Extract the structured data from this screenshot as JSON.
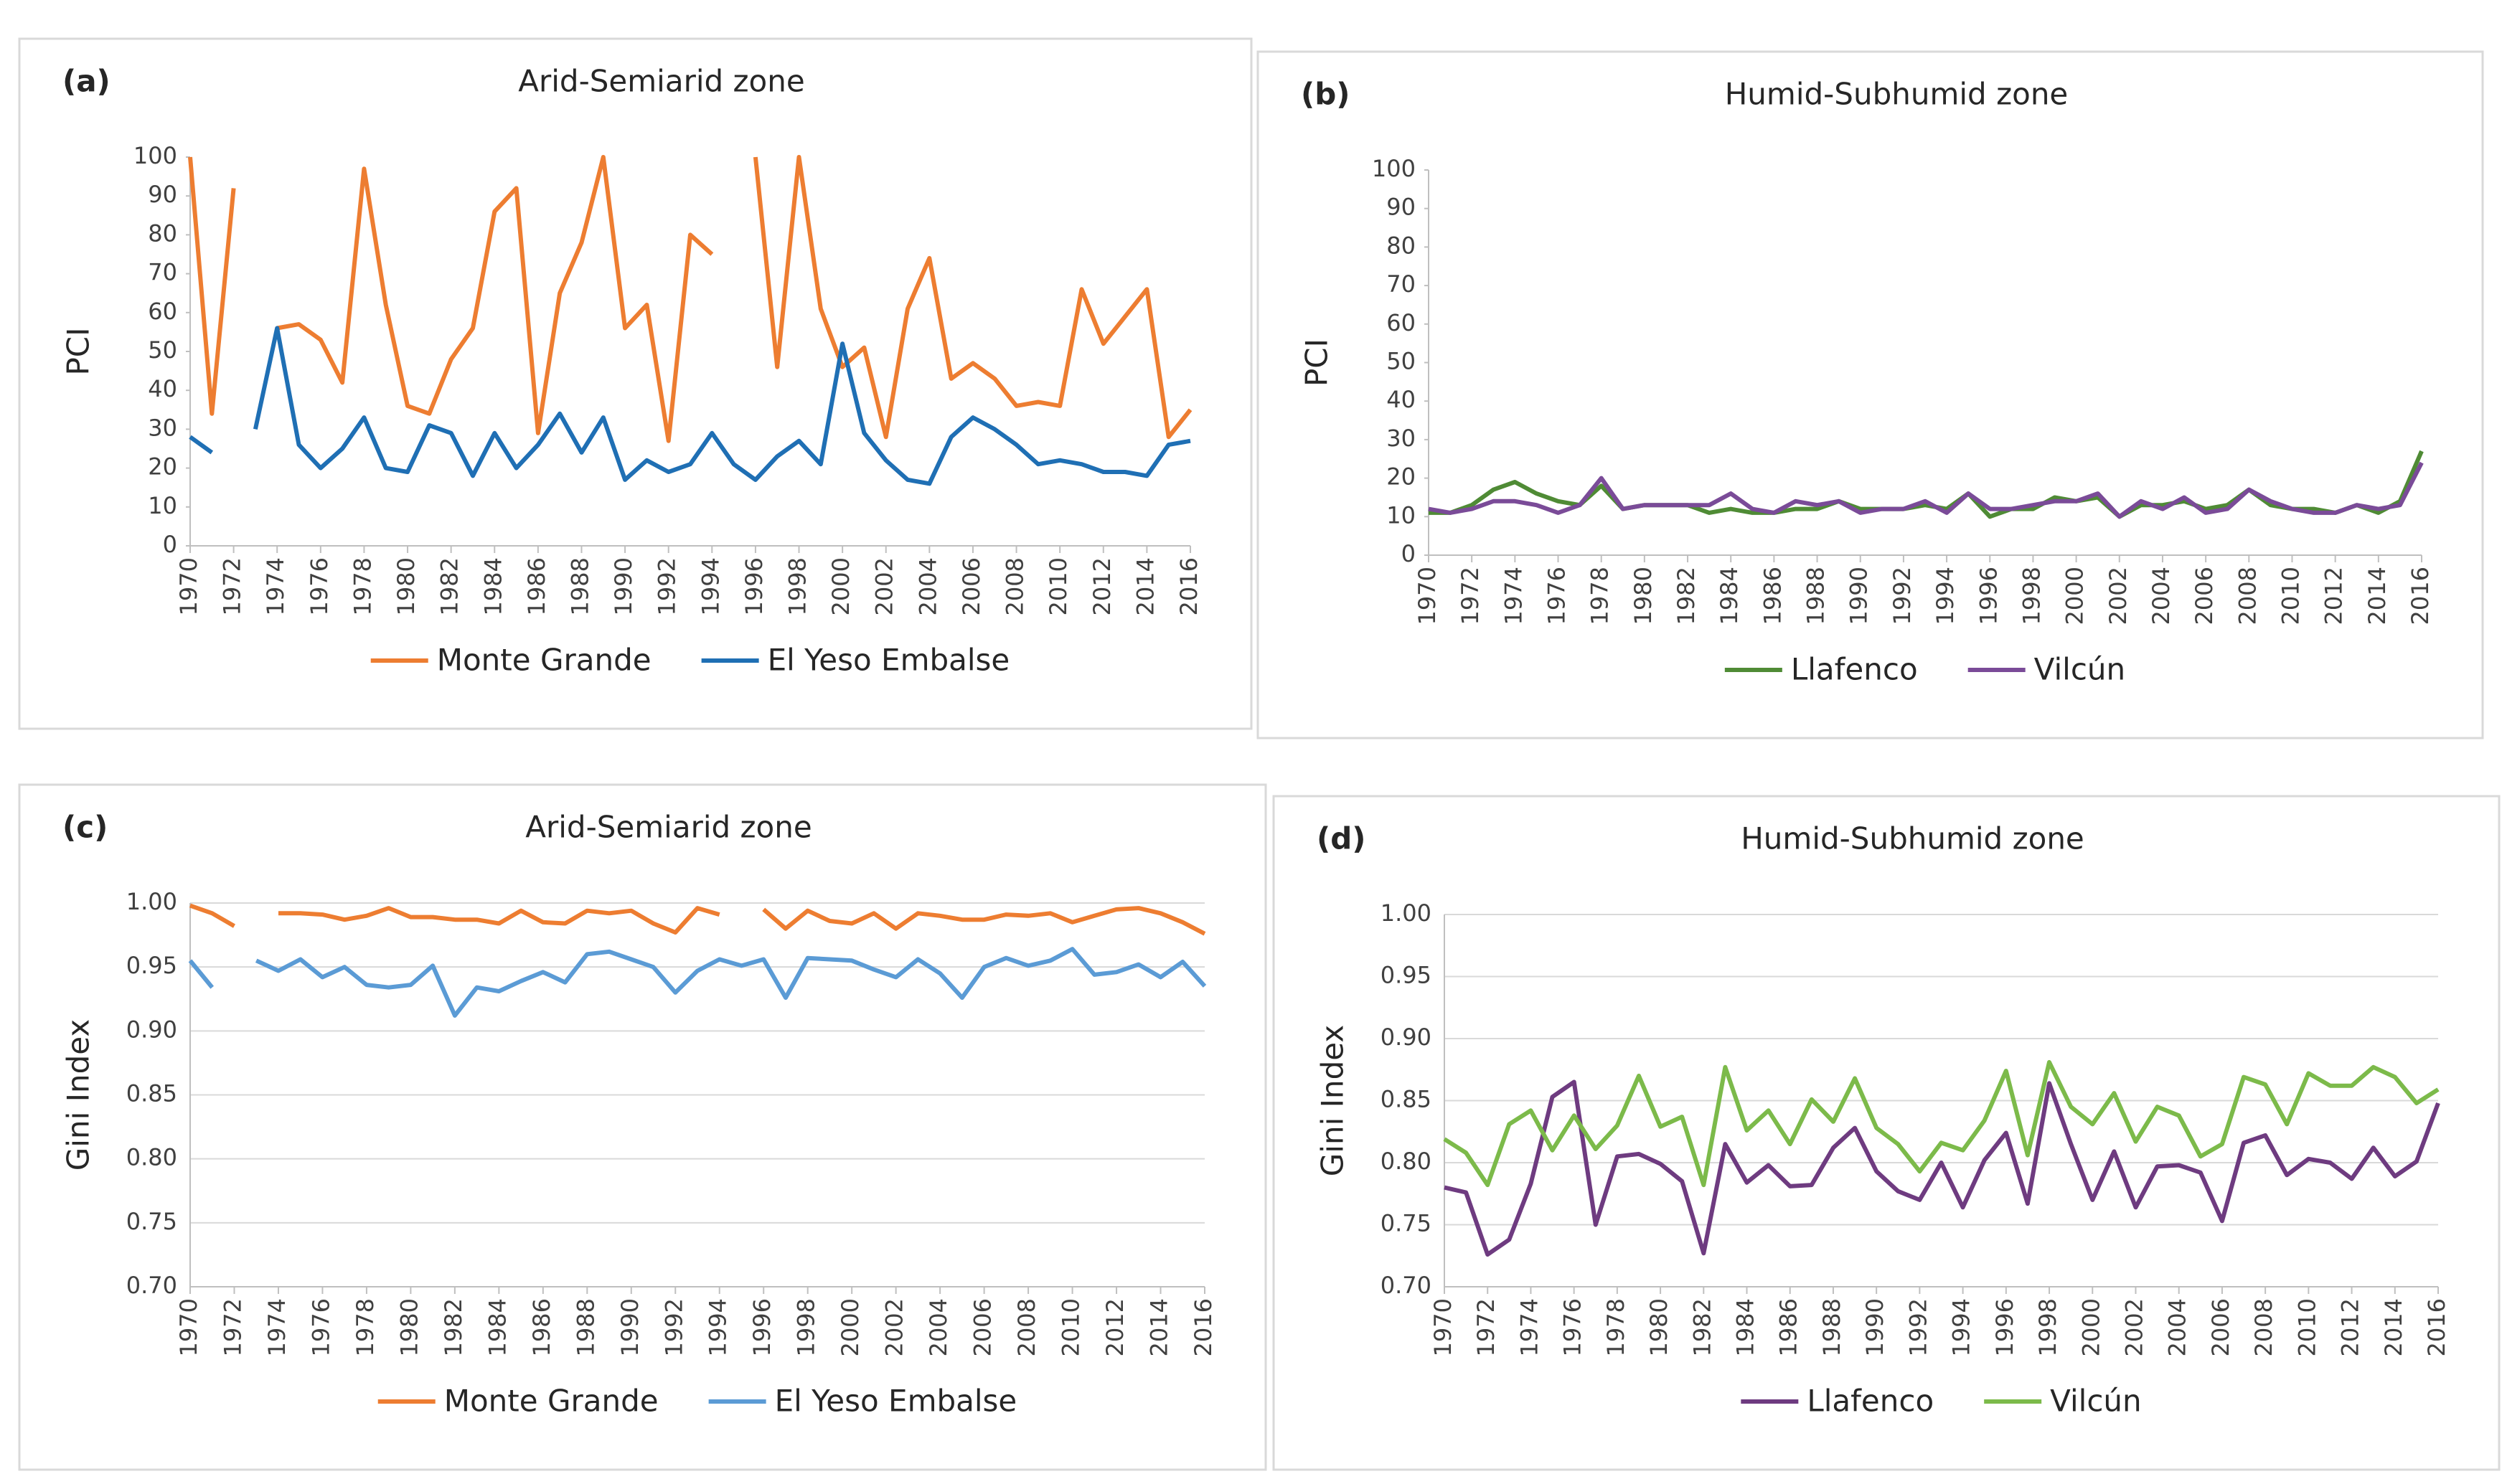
{
  "chart_data": [
    {
      "type": "line",
      "label": "(a)",
      "title": "Arid-Semiarid zone",
      "y_label": "PCI",
      "x": [
        1970,
        1971,
        1972,
        1973,
        1974,
        1975,
        1976,
        1977,
        1978,
        1979,
        1980,
        1981,
        1982,
        1983,
        1984,
        1985,
        1986,
        1987,
        1988,
        1989,
        1990,
        1991,
        1992,
        1993,
        1994,
        1995,
        1996,
        1997,
        1998,
        1999,
        2000,
        2001,
        2002,
        2003,
        2004,
        2005,
        2006,
        2007,
        2008,
        2009,
        2010,
        2011,
        2012,
        2013,
        2014,
        2015,
        2016
      ],
      "xlim": [
        1970,
        2016
      ],
      "xticks": [
        1970,
        1972,
        1974,
        1976,
        1978,
        1980,
        1982,
        1984,
        1986,
        1988,
        1990,
        1992,
        1994,
        1996,
        1998,
        2000,
        2002,
        2004,
        2006,
        2008,
        2010,
        2012,
        2014,
        2016
      ],
      "ylim": [
        0,
        100
      ],
      "yticks": [
        0,
        10,
        20,
        30,
        40,
        50,
        60,
        70,
        80,
        90,
        100
      ],
      "grid": false,
      "series": [
        {
          "name": "Monte Grande",
          "color": "#ed7d31",
          "values": [
            100,
            34,
            92,
            null,
            56,
            57,
            53,
            42,
            97,
            62,
            36,
            34,
            48,
            56,
            86,
            92,
            29,
            65,
            78,
            100,
            56,
            62,
            27,
            80,
            75,
            null,
            100,
            46,
            100,
            61,
            46,
            51,
            28,
            61,
            74,
            43,
            47,
            43,
            36,
            37,
            36,
            66,
            52,
            59,
            66,
            28,
            35
          ]
        },
        {
          "name": "El Yeso Embalse",
          "color": "#1f6fb4",
          "values": [
            28,
            24,
            null,
            30,
            56,
            26,
            20,
            25,
            33,
            20,
            19,
            31,
            29,
            18,
            29,
            20,
            26,
            34,
            24,
            33,
            17,
            22,
            19,
            21,
            29,
            21,
            17,
            23,
            27,
            21,
            52,
            29,
            22,
            17,
            16,
            28,
            33,
            30,
            26,
            21,
            22,
            21,
            19,
            19,
            18,
            26,
            27
          ]
        }
      ]
    },
    {
      "type": "line",
      "label": "(b)",
      "title": "Humid-Subhumid zone",
      "y_label": "PCI",
      "x": [
        1970,
        1971,
        1972,
        1973,
        1974,
        1975,
        1976,
        1977,
        1978,
        1979,
        1980,
        1981,
        1982,
        1983,
        1984,
        1985,
        1986,
        1987,
        1988,
        1989,
        1990,
        1991,
        1992,
        1993,
        1994,
        1995,
        1996,
        1997,
        1998,
        1999,
        2000,
        2001,
        2002,
        2003,
        2004,
        2005,
        2006,
        2007,
        2008,
        2009,
        2010,
        2011,
        2012,
        2013,
        2014,
        2015,
        2016
      ],
      "xlim": [
        1970,
        2016
      ],
      "xticks": [
        1970,
        1972,
        1974,
        1976,
        1978,
        1980,
        1982,
        1984,
        1986,
        1988,
        1990,
        1992,
        1994,
        1996,
        1998,
        2000,
        2002,
        2004,
        2006,
        2008,
        2010,
        2012,
        2014,
        2016
      ],
      "ylim": [
        0,
        100
      ],
      "yticks": [
        0,
        10,
        20,
        30,
        40,
        50,
        60,
        70,
        80,
        90,
        100
      ],
      "grid": false,
      "series": [
        {
          "name": "Llafenco",
          "color": "#4f8b35",
          "values": [
            11,
            11,
            13,
            17,
            19,
            16,
            14,
            13,
            18,
            12,
            13,
            13,
            13,
            11,
            12,
            11,
            11,
            12,
            12,
            14,
            12,
            12,
            12,
            13,
            12,
            16,
            10,
            12,
            12,
            15,
            14,
            15,
            10,
            13,
            13,
            14,
            12,
            13,
            17,
            13,
            12,
            12,
            11,
            13,
            11,
            14,
            27
          ]
        },
        {
          "name": "Vilcún",
          "color": "#7a4b98",
          "values": [
            12,
            11,
            12,
            14,
            14,
            13,
            11,
            13,
            20,
            12,
            13,
            13,
            13,
            13,
            16,
            12,
            11,
            14,
            13,
            14,
            11,
            12,
            12,
            14,
            11,
            16,
            12,
            12,
            13,
            14,
            14,
            16,
            10,
            14,
            12,
            15,
            11,
            12,
            17,
            14,
            12,
            11,
            11,
            13,
            12,
            13,
            24
          ]
        }
      ]
    },
    {
      "type": "line",
      "label": "(c)",
      "title": "Arid-Semiarid zone",
      "y_label": "Gini Index",
      "x": [
        1970,
        1971,
        1972,
        1973,
        1974,
        1975,
        1976,
        1977,
        1978,
        1979,
        1980,
        1981,
        1982,
        1983,
        1984,
        1985,
        1986,
        1987,
        1988,
        1989,
        1990,
        1991,
        1992,
        1993,
        1994,
        1995,
        1996,
        1997,
        1998,
        1999,
        2000,
        2001,
        2002,
        2003,
        2004,
        2005,
        2006,
        2007,
        2008,
        2009,
        2010,
        2011,
        2012,
        2013,
        2014,
        2015,
        2016
      ],
      "xlim": [
        1970,
        2016
      ],
      "xticks": [
        1970,
        1972,
        1974,
        1976,
        1978,
        1980,
        1982,
        1984,
        1986,
        1988,
        1990,
        1992,
        1994,
        1996,
        1998,
        2000,
        2002,
        2004,
        2006,
        2008,
        2010,
        2012,
        2014,
        2016
      ],
      "ylim": [
        0.7,
        1.0
      ],
      "yticks": [
        {
          "value": 0.7,
          "label": "0.70"
        },
        {
          "value": 0.75,
          "label": "0.75"
        },
        {
          "value": 0.8,
          "label": "0.80"
        },
        {
          "value": 0.85,
          "label": "0.85"
        },
        {
          "value": 0.9,
          "label": "0.90"
        },
        {
          "value": 0.95,
          "label": "0.95"
        },
        {
          "value": 1.0,
          "label": "1.00"
        }
      ],
      "grid": true,
      "series": [
        {
          "name": "Monte Grande",
          "color": "#ed7d31",
          "values": [
            0.998,
            0.992,
            0.982,
            null,
            0.992,
            0.992,
            0.991,
            0.987,
            0.99,
            0.996,
            0.989,
            0.989,
            0.987,
            0.987,
            0.984,
            0.994,
            0.985,
            0.984,
            0.994,
            0.992,
            0.994,
            0.984,
            0.977,
            0.996,
            0.991,
            null,
            0.995,
            0.98,
            0.994,
            0.986,
            0.984,
            0.992,
            0.98,
            0.992,
            0.99,
            0.987,
            0.987,
            0.991,
            0.99,
            0.992,
            0.985,
            0.99,
            0.995,
            0.996,
            0.992,
            0.985,
            0.976
          ]
        },
        {
          "name": "El Yeso Embalse",
          "color": "#5b9bd5",
          "values": [
            0.955,
            0.934,
            null,
            0.955,
            0.947,
            0.956,
            0.942,
            0.95,
            0.936,
            0.934,
            0.936,
            0.951,
            0.912,
            0.934,
            0.931,
            0.939,
            0.946,
            0.938,
            0.96,
            0.962,
            0.956,
            0.95,
            0.93,
            0.947,
            0.956,
            0.951,
            0.956,
            0.926,
            0.957,
            0.956,
            0.955,
            0.948,
            0.942,
            0.956,
            0.945,
            0.926,
            0.95,
            0.957,
            0.951,
            0.955,
            0.964,
            0.944,
            0.946,
            0.952,
            0.942,
            0.954,
            0.935
          ]
        }
      ]
    },
    {
      "type": "line",
      "label": "(d)",
      "title": "Humid-Subhumid zone",
      "y_label": "Gini Index",
      "x": [
        1970,
        1971,
        1972,
        1973,
        1974,
        1975,
        1976,
        1977,
        1978,
        1979,
        1980,
        1981,
        1982,
        1983,
        1984,
        1985,
        1986,
        1987,
        1988,
        1989,
        1990,
        1991,
        1992,
        1993,
        1994,
        1995,
        1996,
        1997,
        1998,
        1999,
        2000,
        2001,
        2002,
        2003,
        2004,
        2005,
        2006,
        2007,
        2008,
        2009,
        2010,
        2011,
        2012,
        2013,
        2014,
        2015,
        2016
      ],
      "xlim": [
        1970,
        2016
      ],
      "xticks": [
        1970,
        1972,
        1974,
        1976,
        1978,
        1980,
        1982,
        1984,
        1986,
        1988,
        1990,
        1992,
        1994,
        1996,
        1998,
        2000,
        2002,
        2004,
        2006,
        2008,
        2010,
        2012,
        2014,
        2016
      ],
      "ylim": [
        0.7,
        1.0
      ],
      "yticks": [
        {
          "value": 0.7,
          "label": "0.70"
        },
        {
          "value": 0.75,
          "label": "0.75"
        },
        {
          "value": 0.8,
          "label": "0.80"
        },
        {
          "value": 0.85,
          "label": "0.85"
        },
        {
          "value": 0.9,
          "label": "0.90"
        },
        {
          "value": 0.95,
          "label": "0.95"
        },
        {
          "value": 1.0,
          "label": "1.00"
        }
      ],
      "grid": true,
      "series": [
        {
          "name": "Llafenco",
          "color": "#6e3b80",
          "values": [
            0.78,
            0.776,
            0.726,
            0.738,
            0.783,
            0.853,
            0.865,
            0.75,
            0.805,
            0.807,
            0.799,
            0.785,
            0.727,
            0.815,
            0.784,
            0.798,
            0.781,
            0.782,
            0.812,
            0.828,
            0.793,
            0.777,
            0.77,
            0.8,
            0.764,
            0.802,
            0.824,
            0.767,
            0.864,
            0.815,
            0.77,
            0.809,
            0.764,
            0.797,
            0.798,
            0.792,
            0.753,
            0.816,
            0.822,
            0.79,
            0.803,
            0.8,
            0.787,
            0.812,
            0.789,
            0.801,
            0.848
          ]
        },
        {
          "name": "Vilcún",
          "color": "#7cba4a",
          "values": [
            0.819,
            0.808,
            0.782,
            0.831,
            0.842,
            0.81,
            0.838,
            0.811,
            0.83,
            0.87,
            0.829,
            0.837,
            0.782,
            0.877,
            0.826,
            0.842,
            0.815,
            0.851,
            0.833,
            0.868,
            0.828,
            0.815,
            0.793,
            0.816,
            0.81,
            0.834,
            0.874,
            0.806,
            0.881,
            0.845,
            0.831,
            0.856,
            0.817,
            0.845,
            0.838,
            0.805,
            0.815,
            0.869,
            0.863,
            0.831,
            0.872,
            0.862,
            0.862,
            0.877,
            0.869,
            0.848,
            0.859
          ]
        }
      ]
    }
  ]
}
